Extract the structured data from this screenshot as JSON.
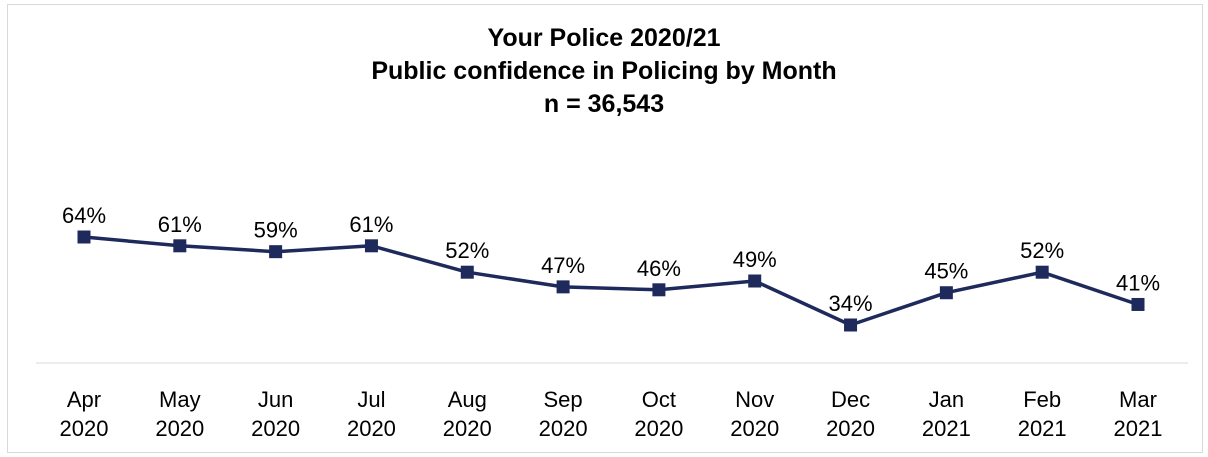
{
  "chart_data": {
    "type": "line",
    "title": "Your Police 2020/21",
    "subtitle": "Public confidence in Policing by Month",
    "n_label": "n = 36,543",
    "categories": [
      [
        "Apr",
        "2020"
      ],
      [
        "May",
        "2020"
      ],
      [
        "Jun",
        "2020"
      ],
      [
        "Jul",
        "2020"
      ],
      [
        "Aug",
        "2020"
      ],
      [
        "Sep",
        "2020"
      ],
      [
        "Oct",
        "2020"
      ],
      [
        "Nov",
        "2020"
      ],
      [
        "Dec",
        "2020"
      ],
      [
        "Jan",
        "2021"
      ],
      [
        "Feb",
        "2021"
      ],
      [
        "Mar",
        "2021"
      ]
    ],
    "series": [
      {
        "values": [
          64,
          61,
          59,
          61,
          52,
          47,
          46,
          49,
          34,
          45,
          52,
          41
        ],
        "color": "#1f2a5c"
      }
    ],
    "value_suffix": "%",
    "ylim": [
      0,
      100
    ],
    "grid": false,
    "marker": "square"
  }
}
